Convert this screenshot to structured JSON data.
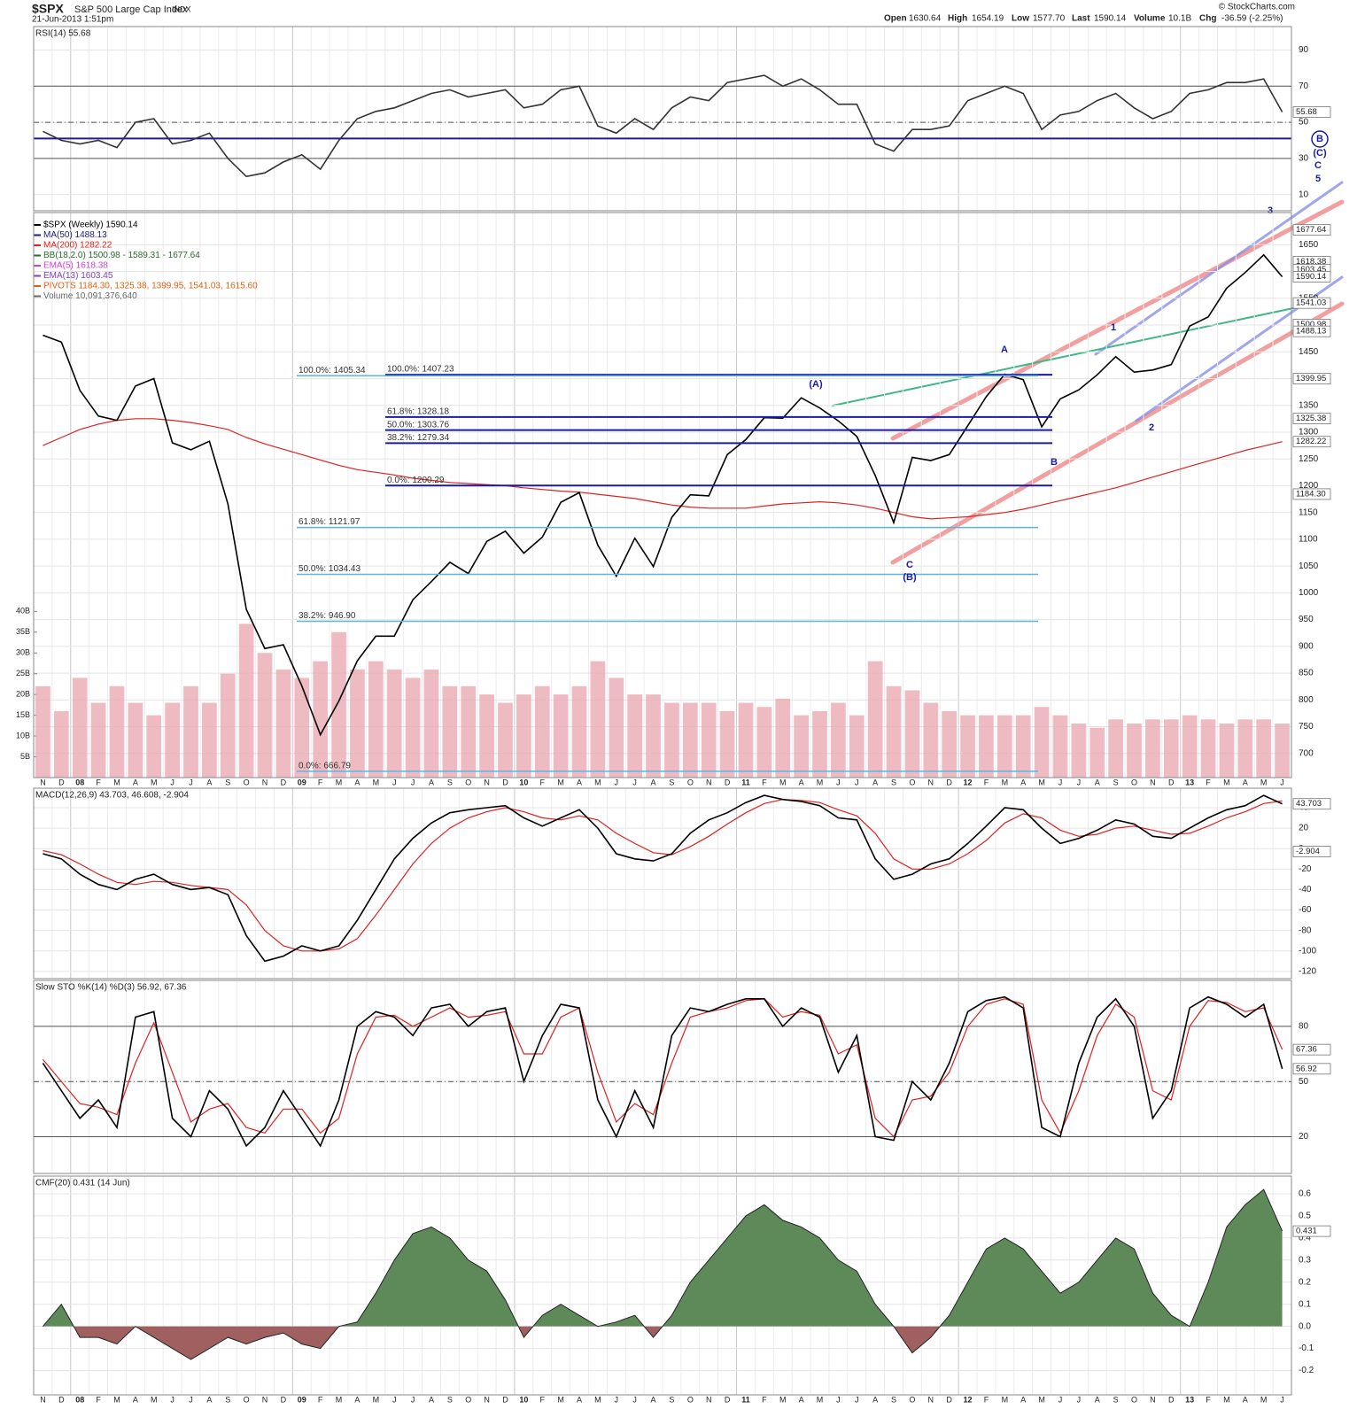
{
  "header": {
    "symbol": "$SPX",
    "name": "S&P 500 Large Cap Index",
    "exchange": "INDX",
    "date": "21-Jun-2013 1:51pm",
    "source": "© StockCharts.com",
    "stats": [
      {
        "label": "Open",
        "value": "1630.64"
      },
      {
        "label": "High",
        "value": "1654.19"
      },
      {
        "label": "Low",
        "value": "1577.70"
      },
      {
        "label": "Last",
        "value": "1590.14"
      },
      {
        "label": "Volume",
        "value": "10.1B"
      },
      {
        "label": "Chg",
        "value": "-36.59 (-2.25%)"
      }
    ]
  },
  "chart_data": [
    {
      "type": "line",
      "title": "RSI(14) 55.68",
      "ylim": [
        1,
        103
      ],
      "yticks": [
        10,
        30,
        50,
        70,
        90
      ],
      "ref_lines": [
        30,
        50,
        70
      ],
      "support_line": 41,
      "last_labels": [
        55.68
      ],
      "series": [
        {
          "color": "#333333",
          "values": [
            45,
            40,
            38,
            40,
            36,
            50,
            52,
            38,
            40,
            44,
            30,
            20,
            22,
            28,
            32,
            24,
            40,
            52,
            56,
            58,
            62,
            66,
            68,
            64,
            66,
            68,
            58,
            60,
            68,
            70,
            48,
            44,
            52,
            46,
            58,
            64,
            62,
            72,
            74,
            76,
            70,
            74,
            68,
            60,
            60,
            38,
            34,
            46,
            46,
            48,
            62,
            66,
            70,
            66,
            46,
            54,
            56,
            62,
            66,
            58,
            52,
            56,
            66,
            68,
            72,
            72,
            74,
            55.68
          ]
        }
      ]
    },
    {
      "type": "line",
      "ylim": [
        655,
        1710
      ],
      "yticks": [
        700,
        750,
        800,
        850,
        900,
        950,
        1000,
        1050,
        1100,
        1150,
        1200,
        1250,
        1300,
        1350,
        1400,
        1450,
        1500,
        1550,
        1600,
        1650
      ],
      "y2lim": [
        0,
        136
      ],
      "y2ticks": [
        {
          "value": 5,
          "label": "5B"
        },
        {
          "value": 10,
          "label": "10B"
        },
        {
          "value": 15,
          "label": "15B"
        },
        {
          "value": 20,
          "label": "20B"
        },
        {
          "value": 25,
          "label": "25B"
        },
        {
          "value": 30,
          "label": "30B"
        },
        {
          "value": 35,
          "label": "35B"
        },
        {
          "value": 40,
          "label": "40B"
        }
      ],
      "categories": [
        "N",
        "D",
        "08",
        "F",
        "M",
        "A",
        "M",
        "J",
        "J",
        "A",
        "S",
        "O",
        "N",
        "D",
        "09",
        "F",
        "M",
        "A",
        "M",
        "J",
        "J",
        "A",
        "S",
        "O",
        "N",
        "D",
        "10",
        "F",
        "M",
        "A",
        "M",
        "J",
        "J",
        "A",
        "S",
        "O",
        "N",
        "D",
        "11",
        "F",
        "M",
        "A",
        "M",
        "J",
        "J",
        "A",
        "S",
        "O",
        "N",
        "D",
        "12",
        "F",
        "M",
        "A",
        "M",
        "J",
        "J",
        "A",
        "S",
        "O",
        "N",
        "D",
        "13",
        "F",
        "M",
        "A",
        "M",
        "J"
      ],
      "legend": [
        {
          "text": "$SPX (Weekly) 1590.14",
          "color": "#000000"
        },
        {
          "text": "MA(50) 1488.13",
          "color": "#1a1a80"
        },
        {
          "text": "MA(200) 1282.22",
          "color": "#e02020"
        },
        {
          "text": "BB(18,2.0) 1500.98 - 1589.31 - 1677.64",
          "color": "#2a6a2a"
        },
        {
          "text": "EMA(5) 1618.38",
          "color": "#d040d0"
        },
        {
          "text": "EMA(13) 1603.45",
          "color": "#8040c0"
        },
        {
          "text": "PIVOTS 1184.30, 1325.38, 1399.95, 1541.03, 1615.60",
          "color": "#e06010"
        },
        {
          "text": "Volume 10,091,376,640",
          "color": "#666666"
        }
      ],
      "series": [
        {
          "type": "bar",
          "axis": "y2",
          "color": "#e8aab2",
          "values": [
            22,
            16,
            24,
            18,
            22,
            18,
            15,
            18,
            22,
            18,
            25,
            37,
            30,
            26,
            24,
            28,
            35,
            26,
            28,
            26,
            24,
            26,
            22,
            22,
            20,
            18,
            20,
            22,
            20,
            22,
            28,
            24,
            20,
            20,
            18,
            18,
            18,
            16,
            18,
            17,
            19,
            15,
            16,
            18,
            15,
            28,
            22,
            21,
            18,
            16,
            15,
            15,
            15,
            15,
            17,
            15,
            13,
            12,
            14,
            13,
            14,
            14,
            15,
            14,
            13,
            14,
            14,
            13
          ]
        },
        {
          "color": "#e02020",
          "values": [
            1275,
            1290,
            1305,
            1315,
            1322,
            1325,
            1325,
            1322,
            1318,
            1312,
            1305,
            1290,
            1278,
            1268,
            1258,
            1248,
            1238,
            1230,
            1225,
            1220,
            1214,
            1210,
            1206,
            1204,
            1202,
            1200,
            1196,
            1193,
            1190,
            1188,
            1184,
            1180,
            1176,
            1170,
            1164,
            1160,
            1158,
            1158,
            1158,
            1162,
            1166,
            1168,
            1170,
            1168,
            1164,
            1158,
            1150,
            1142,
            1138,
            1140,
            1142,
            1146,
            1150,
            1156,
            1164,
            1172,
            1180,
            1188,
            1196,
            1206,
            1216,
            1226,
            1236,
            1246,
            1256,
            1266,
            1274,
            1282.22
          ]
        },
        {
          "color": "#000000",
          "values": [
            1481,
            1468,
            1378,
            1330,
            1322,
            1386,
            1400,
            1280,
            1267,
            1283,
            1166,
            969,
            896,
            903,
            826,
            735,
            798,
            873,
            919,
            919,
            987,
            1021,
            1057,
            1036,
            1096,
            1115,
            1074,
            1104,
            1169,
            1187,
            1089,
            1031,
            1102,
            1049,
            1141,
            1183,
            1181,
            1258,
            1286,
            1327,
            1326,
            1364,
            1345,
            1321,
            1292,
            1219,
            1131,
            1253,
            1247,
            1258,
            1312,
            1366,
            1408,
            1398,
            1310,
            1362,
            1379,
            1407,
            1441,
            1412,
            1416,
            1426,
            1498,
            1515,
            1569,
            1598,
            1631,
            1590.14
          ]
        }
      ],
      "fib_primary": {
        "color": "#1a1aa8",
        "levels": [
          {
            "value": 1407.23,
            "label": "100.0%: 1407.23"
          },
          {
            "value": 1328.18,
            "label": "61.8%: 1328.18"
          },
          {
            "value": 1303.76,
            "label": "50.0%: 1303.76"
          },
          {
            "value": 1279.34,
            "label": "38.2%: 1279.34"
          },
          {
            "value": 1200.29,
            "label": "0.0%: 1200.29"
          }
        ]
      },
      "fib_secondary": {
        "color": "#5ab4e8",
        "levels": [
          {
            "value": 1405.34,
            "label": "100.0%: 1405.34"
          },
          {
            "value": 1121.97,
            "label": "61.8%: 1121.97"
          },
          {
            "value": 1034.43,
            "label": "50.0%: 1034.43"
          },
          {
            "value": 946.9,
            "label": "38.2%: 946.90"
          },
          {
            "value": 666.79,
            "label": "0.0%: 666.79"
          }
        ]
      },
      "wave_labels": [
        "(A)",
        "A",
        "B",
        "C",
        "(B)",
        "1",
        "2",
        "3",
        "B",
        "(C)",
        "C",
        "5"
      ],
      "last_labels": [
        1677.64,
        1618.38,
        1603.45,
        1590.14,
        1541.03,
        1500.98,
        1488.13,
        1399.95,
        1325.38,
        1282.22,
        {
          "value": 1184.3,
          "label": "1184.30"
        }
      ]
    },
    {
      "type": "line",
      "title": "MACD(12,26,9) 43.703, 46.608, -2.904",
      "ylim": [
        -127,
        59
      ],
      "yticks": [
        40,
        20,
        0,
        -20,
        -40,
        -60,
        -80,
        -100,
        -120
      ],
      "last_labels": [
        43.703,
        -2.904
      ],
      "series": [
        {
          "color": "#e02020",
          "values": [
            -2,
            -6,
            -15,
            -25,
            -33,
            -35,
            -32,
            -33,
            -36,
            -38,
            -40,
            -55,
            -80,
            -95,
            -100,
            -100,
            -98,
            -88,
            -65,
            -40,
            -15,
            5,
            20,
            30,
            36,
            40,
            36,
            30,
            28,
            32,
            28,
            15,
            5,
            -4,
            -6,
            2,
            12,
            24,
            35,
            44,
            48,
            47,
            45,
            38,
            32,
            15,
            -10,
            -20,
            -20,
            -15,
            -5,
            8,
            25,
            34,
            30,
            18,
            12,
            14,
            20,
            22,
            18,
            14,
            15,
            22,
            30,
            36,
            44,
            46.608
          ]
        },
        {
          "color": "#000000",
          "values": [
            -5,
            -10,
            -25,
            -35,
            -40,
            -30,
            -25,
            -35,
            -40,
            -38,
            -45,
            -85,
            -110,
            -105,
            -95,
            -100,
            -95,
            -70,
            -40,
            -10,
            10,
            25,
            35,
            38,
            40,
            42,
            30,
            22,
            30,
            38,
            20,
            -5,
            -10,
            -12,
            -5,
            15,
            28,
            35,
            45,
            52,
            48,
            46,
            42,
            30,
            28,
            -10,
            -30,
            -25,
            -15,
            -10,
            5,
            22,
            40,
            38,
            20,
            5,
            10,
            18,
            28,
            24,
            12,
            10,
            20,
            30,
            38,
            42,
            52,
            43.703
          ]
        }
      ]
    },
    {
      "type": "line",
      "title": "Slow STO %K(14) %D(3) 56.92, 67.36",
      "ylim": [
        0,
        105
      ],
      "yticks": [
        20,
        50,
        80
      ],
      "ref_lines": [
        20,
        50,
        80
      ],
      "last_labels": [
        67.36,
        56.92
      ],
      "series": [
        {
          "color": "#e02020",
          "values": [
            62,
            50,
            38,
            36,
            32,
            60,
            82,
            55,
            28,
            35,
            38,
            25,
            22,
            35,
            35,
            22,
            30,
            65,
            85,
            86,
            80,
            85,
            90,
            85,
            86,
            88,
            65,
            65,
            85,
            90,
            55,
            28,
            38,
            32,
            60,
            85,
            88,
            90,
            94,
            95,
            85,
            88,
            86,
            65,
            70,
            30,
            20,
            40,
            42,
            55,
            80,
            92,
            95,
            92,
            40,
            22,
            45,
            75,
            92,
            85,
            45,
            40,
            80,
            94,
            93,
            88,
            90,
            67.36
          ]
        },
        {
          "color": "#000000",
          "values": [
            60,
            45,
            30,
            40,
            25,
            85,
            88,
            30,
            20,
            45,
            35,
            15,
            25,
            45,
            30,
            15,
            40,
            80,
            88,
            85,
            75,
            90,
            92,
            80,
            88,
            90,
            50,
            75,
            92,
            90,
            40,
            20,
            45,
            25,
            75,
            90,
            88,
            92,
            95,
            95,
            80,
            90,
            85,
            55,
            75,
            20,
            18,
            50,
            40,
            60,
            88,
            94,
            96,
            90,
            25,
            20,
            60,
            85,
            95,
            80,
            30,
            45,
            90,
            96,
            92,
            85,
            92,
            56.92
          ]
        }
      ]
    },
    {
      "type": "area",
      "title": "CMF(20) 0.431 (14 Jun)",
      "ylim": [
        -0.31,
        0.68
      ],
      "yticks": [
        0.6,
        0.5,
        0.4,
        0.3,
        0.2,
        0.1,
        {
          "value": 0,
          "label": "0.0"
        },
        -0.1,
        -0.2
      ],
      "last_labels": [
        0.431
      ],
      "color": "#5e8a5a",
      "negative_color": "#a06060",
      "categories": [
        "N",
        "D",
        "08",
        "F",
        "M",
        "A",
        "M",
        "J",
        "J",
        "A",
        "S",
        "O",
        "N",
        "D",
        "09",
        "F",
        "M",
        "A",
        "M",
        "J",
        "J",
        "A",
        "S",
        "O",
        "N",
        "D",
        "10",
        "F",
        "M",
        "A",
        "M",
        "J",
        "J",
        "A",
        "S",
        "O",
        "N",
        "D",
        "11",
        "F",
        "M",
        "A",
        "M",
        "J",
        "J",
        "A",
        "S",
        "O",
        "N",
        "D",
        "12",
        "F",
        "M",
        "A",
        "M",
        "J",
        "J",
        "A",
        "S",
        "O",
        "N",
        "D",
        "13",
        "F",
        "M",
        "A",
        "M",
        "J"
      ],
      "values": [
        0.0,
        0.1,
        -0.05,
        -0.05,
        -0.08,
        0.0,
        -0.05,
        -0.1,
        -0.15,
        -0.1,
        -0.05,
        -0.08,
        -0.05,
        -0.03,
        -0.08,
        -0.1,
        0.0,
        0.02,
        0.15,
        0.3,
        0.42,
        0.45,
        0.4,
        0.3,
        0.25,
        0.12,
        -0.05,
        0.05,
        0.1,
        0.05,
        0.0,
        0.02,
        0.05,
        -0.05,
        0.05,
        0.2,
        0.3,
        0.4,
        0.5,
        0.55,
        0.48,
        0.45,
        0.4,
        0.3,
        0.25,
        0.1,
        0.0,
        -0.12,
        -0.05,
        0.05,
        0.2,
        0.35,
        0.4,
        0.35,
        0.25,
        0.15,
        0.2,
        0.3,
        0.4,
        0.35,
        0.15,
        0.05,
        0.0,
        0.2,
        0.45,
        0.55,
        0.62,
        0.431
      ]
    }
  ]
}
